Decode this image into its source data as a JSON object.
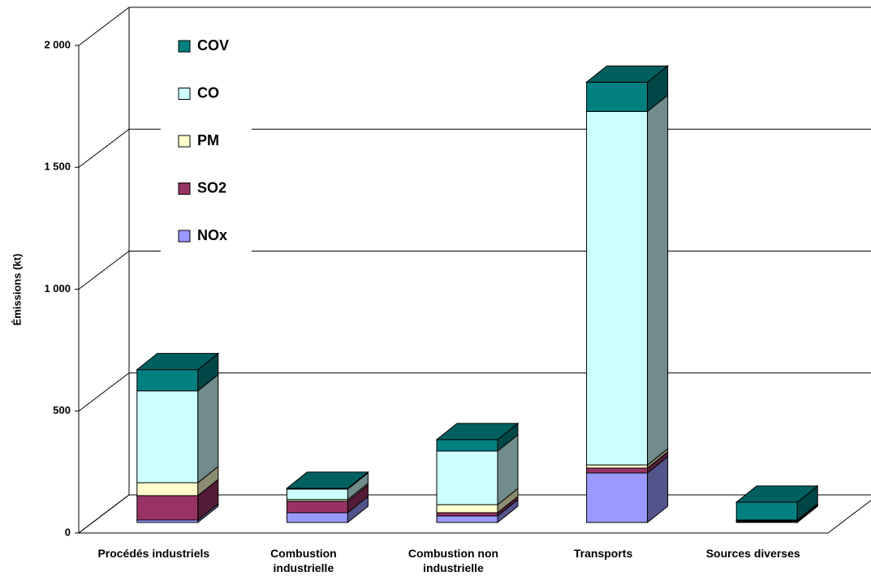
{
  "chart_data": {
    "type": "bar3d_stacked",
    "y_label": "Émissions (kt)",
    "categories": [
      "Procédés industriels",
      "Combustion\nindustrielle",
      "Combustion non\nindustrielle",
      "Transports",
      "Sources diverses"
    ],
    "series": [
      {
        "name": "NOx",
        "color": "#9999ff",
        "values": [
          10,
          40,
          27,
          203,
          3
        ]
      },
      {
        "name": "SO2",
        "color": "#993366",
        "values": [
          100,
          47,
          13,
          20,
          2
        ]
      },
      {
        "name": "PM",
        "color": "#ffffcc",
        "values": [
          53,
          7,
          33,
          13,
          2
        ]
      },
      {
        "name": "CO",
        "color": "#ccffff",
        "values": [
          377,
          43,
          220,
          1450,
          3
        ]
      },
      {
        "name": "COV",
        "color": "#008080",
        "values": [
          87,
          3,
          47,
          120,
          73
        ]
      }
    ],
    "ylim": [
      0,
      2000
    ],
    "yticks": [
      0,
      500,
      {
        "value": 1000,
        "label": "1 000"
      },
      {
        "value": 1500,
        "label": "1 500"
      },
      {
        "value": 2000,
        "label": "2 000"
      }
    ],
    "grid": true
  }
}
